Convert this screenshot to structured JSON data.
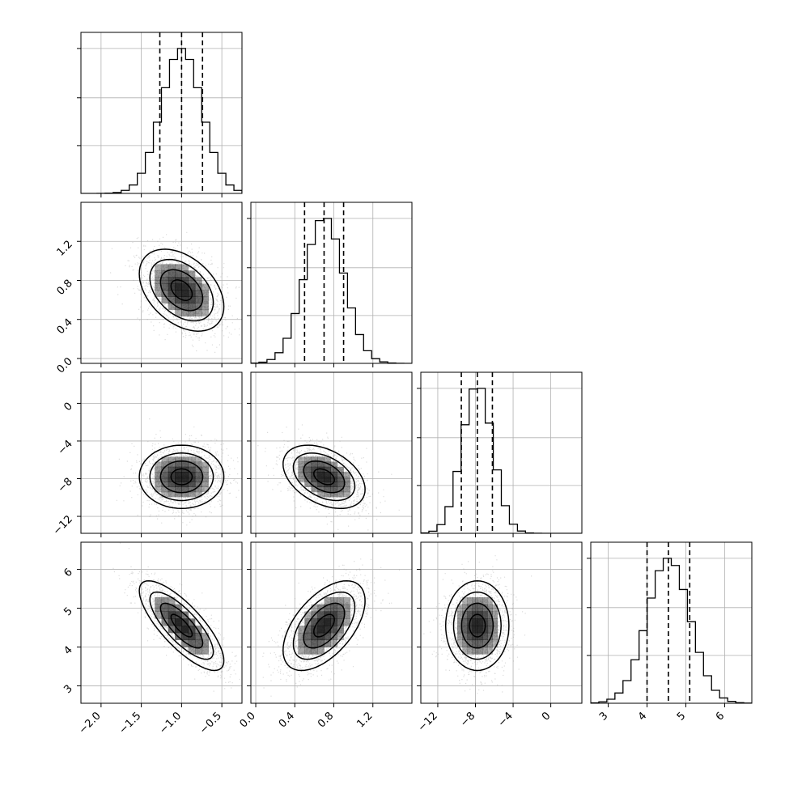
{
  "chart_data": {
    "type": "corner",
    "style": {
      "histogram_color": "#000000",
      "contour_color": "#000000",
      "sample_point_color": "#9a9a9a",
      "density_fill_color": "#000000",
      "grid_color": "#b0b0b0",
      "quantile_line_style": "dashed",
      "grid": true
    },
    "parameters": [
      {
        "range": [
          -2.25,
          -0.25
        ],
        "ticks": [
          -2.0,
          -1.5,
          -1.0,
          -0.5
        ],
        "tick_labels": [
          "−2.0",
          "−1.5",
          "−1.0",
          "−0.5"
        ],
        "mean": -1.0,
        "std": 0.25,
        "quantiles": [
          -1.27,
          -1.0,
          -0.74
        ]
      },
      {
        "range": [
          -0.05,
          1.6
        ],
        "ticks": [
          0.0,
          0.4,
          0.8,
          1.2
        ],
        "tick_labels": [
          "0.0",
          "0.4",
          "0.8",
          "1.2"
        ],
        "mean": 0.7,
        "std": 0.2,
        "quantiles": [
          0.5,
          0.7,
          0.9
        ]
      },
      {
        "range": [
          -13.8,
          3.3
        ],
        "ticks": [
          -12,
          -8,
          -4,
          0
        ],
        "tick_labels": [
          "−12",
          "−8",
          "−4",
          "0"
        ],
        "mean": -7.8,
        "std": 1.6,
        "quantiles": [
          -9.5,
          -7.8,
          -6.2
        ]
      },
      {
        "range": [
          2.55,
          6.7
        ],
        "ticks": [
          3,
          4,
          5,
          6
        ],
        "tick_labels": [
          "3",
          "4",
          "5",
          "6"
        ],
        "mean": 4.55,
        "std": 0.55,
        "quantiles": [
          4.0,
          4.55,
          5.1
        ]
      }
    ],
    "correlations": [
      [
        1.0,
        -0.4,
        0.0,
        -0.78
      ],
      [
        -0.4,
        1.0,
        -0.4,
        0.55
      ],
      [
        0.0,
        -0.4,
        1.0,
        0.0
      ],
      [
        -0.78,
        0.55,
        0.0,
        1.0
      ]
    ],
    "histogram_bins": 20,
    "contour_levels_sigma": [
      0.5,
      1.0,
      1.5,
      2.0
    ]
  }
}
